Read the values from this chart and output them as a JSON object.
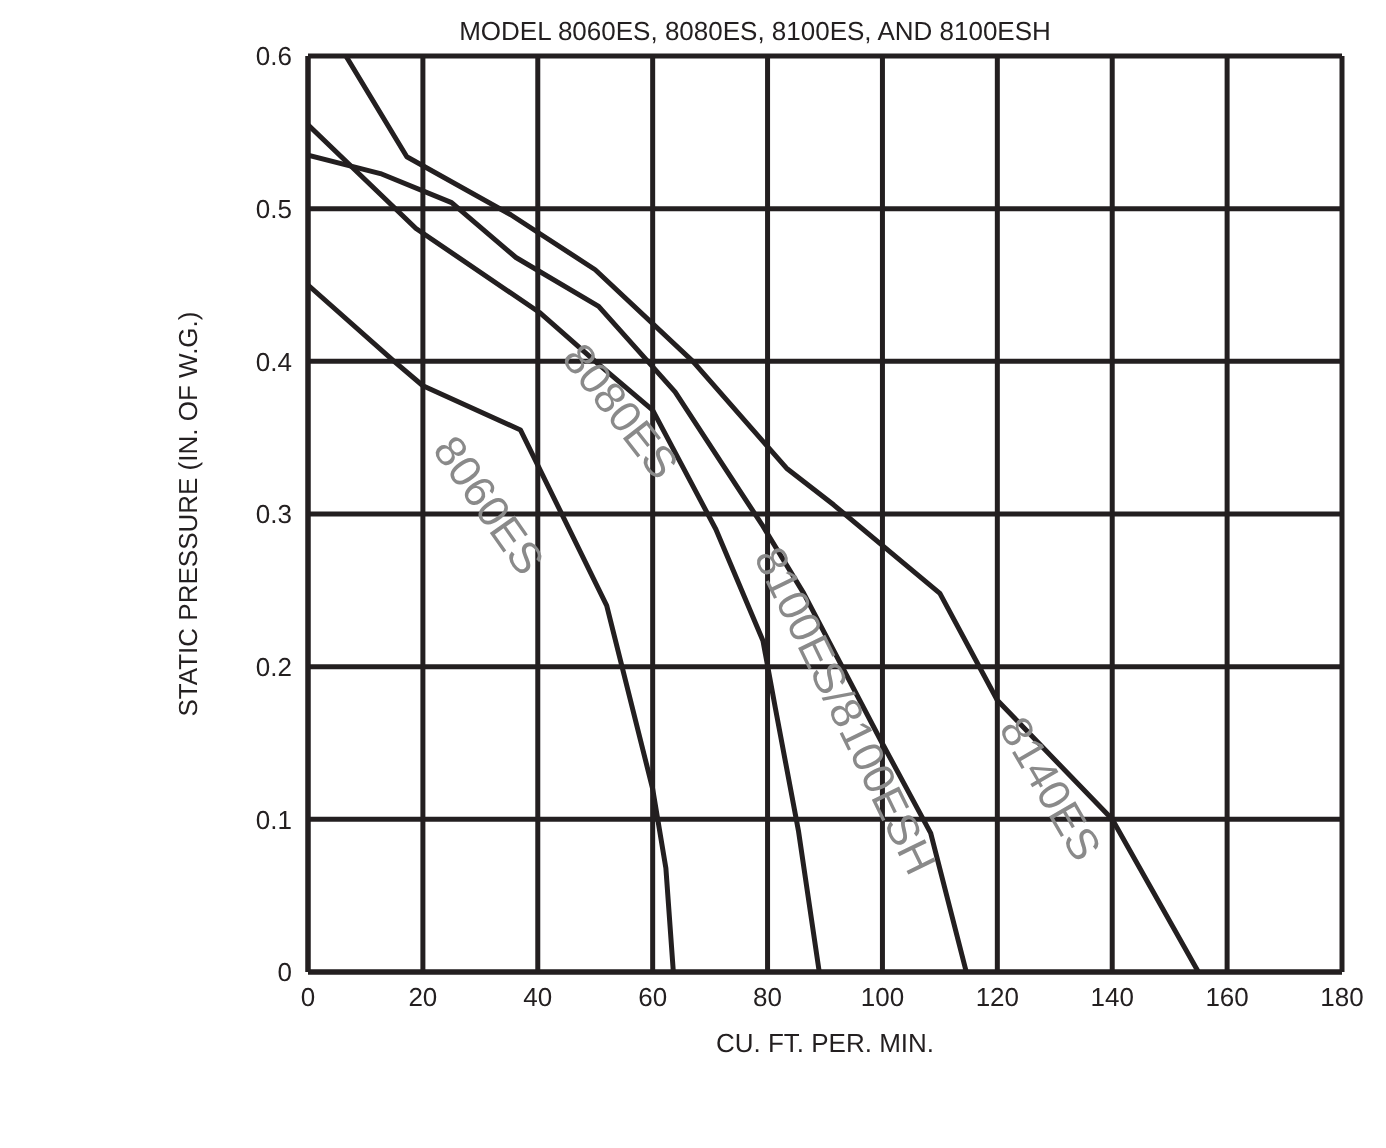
{
  "chart_data": {
    "type": "line",
    "title": "MODEL 8060ES, 8080ES, 8100ES, AND 8100ESH",
    "xlabel": "CU. FT. PER. MIN.",
    "ylabel": "STATIC PRESSURE (IN. OF W.G.)",
    "xlim": [
      0,
      180
    ],
    "xticks": [
      0,
      20,
      40,
      60,
      80,
      100,
      120,
      140,
      160,
      180
    ],
    "ylim": [
      0,
      0.6
    ],
    "yticks": [
      0,
      0.1,
      0.2,
      0.3,
      0.4,
      0.5,
      0.6
    ],
    "grid": true,
    "marker": "none",
    "line_style": "solid",
    "series": [
      {
        "name": "8060ES",
        "color": "#231f20",
        "x": [
          0,
          15,
          20,
          37,
          52,
          60,
          62.3,
          63.6
        ],
        "values": [
          0.45,
          0.4,
          0.384,
          0.355,
          0.24,
          0.12,
          0.068,
          0
        ]
      },
      {
        "name": "8080ES",
        "color": "#231f20",
        "x": [
          0,
          18.8,
          40.3,
          50.6,
          60,
          71,
          79.2,
          81.4,
          85.4,
          89
        ],
        "values": [
          0.555,
          0.487,
          0.432,
          0.398,
          0.368,
          0.29,
          0.217,
          0.172,
          0.092,
          0
        ]
      },
      {
        "name": "8100ES/8100ESH",
        "color": "#231f20",
        "x": [
          0,
          12.6,
          25,
          36.2,
          50.6,
          63.9,
          79.2,
          86.3,
          99.8,
          108.4,
          114.6
        ],
        "values": [
          0.535,
          0.523,
          0.504,
          0.468,
          0.436,
          0.38,
          0.292,
          0.248,
          0.151,
          0.091,
          0
        ]
      },
      {
        "name": "8140ES",
        "color": "#231f20",
        "x": [
          6.6,
          17.2,
          35.3,
          50,
          67,
          83.3,
          91.5,
          110,
          120,
          140,
          155
        ],
        "values": [
          0.6,
          0.534,
          0.496,
          0.46,
          0.4,
          0.33,
          0.306,
          0.248,
          0.178,
          0.1,
          0
        ]
      }
    ]
  }
}
